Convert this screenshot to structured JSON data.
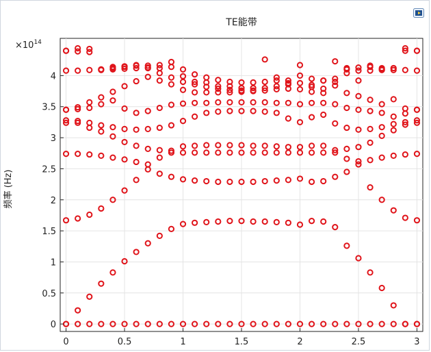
{
  "chart_data": {
    "type": "scatter",
    "title": "TE能带",
    "xlabel": "",
    "ylabel": "频率 (Hz)",
    "y_exponent_label": "×10",
    "y_exponent_power": "14",
    "xlim": [
      -0.05,
      3.05
    ],
    "ylim": [
      -0.12,
      4.6
    ],
    "x_ticks": [
      0,
      0.5,
      1,
      1.5,
      2,
      2.5,
      3
    ],
    "y_ticks": [
      0,
      0.5,
      1,
      1.5,
      2,
      2.5,
      3,
      3.5,
      4
    ],
    "x_tick_labels": [
      "0",
      "0.5",
      "1",
      "1.5",
      "2",
      "2.5",
      "3"
    ],
    "y_tick_labels": [
      "0",
      "0.5",
      "1",
      "1.5",
      "2",
      "2.5",
      "3",
      "3.5",
      "4"
    ],
    "grid": true,
    "marker": "hollow-circle",
    "marker_color": "#e0141a",
    "x": [
      0,
      0.1,
      0.2,
      0.3,
      0.4,
      0.5,
      0.6,
      0.7,
      0.8,
      0.9,
      1.0,
      1.1,
      1.2,
      1.3,
      1.4,
      1.5,
      1.6,
      1.7,
      1.8,
      1.9,
      2.0,
      2.1,
      2.2,
      2.3,
      2.4,
      2.5,
      2.6,
      2.7,
      2.8,
      2.9,
      3.0
    ],
    "series": [
      {
        "values": [
          0,
          0,
          0,
          0,
          0,
          0,
          0,
          0,
          0,
          0,
          0,
          0,
          0,
          0,
          0,
          0,
          0,
          0,
          0,
          0,
          0,
          0,
          0,
          0,
          0,
          0,
          0,
          0,
          0,
          0,
          0
        ]
      },
      {
        "values": [
          0,
          0.22,
          0.44,
          0.65,
          0.83,
          1.01,
          1.16,
          1.3,
          1.42,
          1.53,
          1.61,
          1.63,
          1.64,
          1.65,
          1.66,
          1.66,
          1.65,
          1.65,
          1.64,
          1.63,
          1.6,
          1.66,
          1.65,
          1.56,
          1.26,
          1.06,
          0.83,
          0.58,
          0.3,
          0.0,
          0.0
        ]
      },
      {
        "values": [
          1.67,
          1.7,
          1.76,
          1.86,
          2.0,
          2.15,
          2.32,
          2.49,
          2.42,
          2.37,
          2.33,
          2.31,
          2.3,
          2.29,
          2.29,
          2.29,
          2.29,
          2.3,
          2.31,
          2.32,
          2.34,
          2.29,
          2.3,
          2.37,
          2.45,
          2.62,
          2.2,
          2.0,
          1.83,
          1.71,
          1.67
        ]
      },
      {
        "values": [
          2.74,
          2.74,
          2.73,
          2.71,
          2.68,
          2.65,
          2.61,
          2.57,
          2.68,
          2.79,
          2.76,
          2.76,
          2.76,
          2.76,
          2.76,
          2.76,
          2.76,
          2.76,
          2.76,
          2.76,
          2.76,
          2.76,
          2.76,
          2.76,
          2.66,
          2.57,
          2.64,
          2.68,
          2.71,
          2.73,
          2.74
        ]
      },
      {
        "values": [
          3.24,
          3.24,
          3.16,
          3.1,
          3.02,
          2.93,
          2.87,
          2.82,
          2.8,
          2.76,
          2.86,
          2.87,
          2.88,
          2.88,
          2.88,
          2.88,
          2.87,
          2.87,
          2.86,
          2.85,
          2.85,
          2.87,
          2.87,
          2.8,
          2.82,
          2.85,
          2.92,
          3.03,
          3.12,
          3.21,
          3.24
        ]
      },
      {
        "values": [
          3.28,
          3.27,
          3.24,
          3.2,
          3.17,
          3.14,
          3.13,
          3.14,
          3.16,
          3.2,
          3.27,
          3.34,
          3.4,
          3.42,
          3.43,
          3.43,
          3.43,
          3.42,
          3.4,
          3.31,
          3.25,
          3.33,
          3.37,
          3.23,
          3.16,
          3.13,
          3.14,
          3.17,
          3.22,
          3.25,
          3.28
        ]
      },
      {
        "values": [
          3.45,
          3.46,
          3.48,
          3.54,
          3.6,
          3.47,
          3.4,
          3.43,
          3.48,
          3.53,
          3.55,
          3.56,
          3.56,
          3.57,
          3.57,
          3.57,
          3.57,
          3.57,
          3.56,
          3.56,
          3.54,
          3.56,
          3.56,
          3.54,
          3.48,
          3.45,
          3.43,
          3.4,
          3.34,
          3.39,
          3.45
        ]
      },
      {
        "values": [
          3.45,
          3.49,
          3.57,
          3.65,
          3.74,
          3.83,
          3.91,
          3.98,
          4.04,
          3.86,
          3.77,
          3.73,
          3.73,
          3.73,
          3.73,
          3.74,
          3.75,
          3.76,
          3.78,
          3.79,
          3.78,
          3.74,
          3.72,
          3.84,
          3.72,
          3.67,
          3.61,
          3.54,
          3.62,
          3.47,
          3.45
        ]
      },
      {
        "values": [
          4.08,
          4.08,
          4.09,
          4.09,
          4.1,
          4.11,
          4.12,
          4.12,
          4.12,
          4.14,
          4.1,
          4.02,
          3.97,
          3.93,
          3.9,
          3.89,
          3.89,
          3.9,
          3.92,
          3.92,
          4.0,
          3.95,
          3.92,
          3.9,
          4.04,
          4.08,
          4.08,
          4.09,
          4.09,
          4.09,
          4.08
        ]
      },
      {
        "values": [
          4.4,
          4.44,
          4.43,
          4.1,
          4.14,
          4.15,
          4.17,
          4.16,
          4.17,
          4.22,
          3.99,
          3.9,
          3.89,
          3.83,
          3.83,
          3.8,
          3.8,
          4.26,
          3.97,
          3.88,
          4.17,
          3.85,
          3.92,
          4.23,
          4.12,
          4.13,
          4.14,
          4.12,
          4.12,
          4.44,
          4.4
        ]
      },
      {
        "values": [
          4.4,
          4.39,
          4.38,
          4.1,
          4.12,
          4.14,
          4.16,
          4.13,
          3.92,
          3.97,
          3.9,
          3.86,
          3.82,
          3.79,
          3.77,
          3.76,
          3.76,
          3.8,
          3.83,
          3.86,
          3.88,
          3.82,
          3.79,
          3.95,
          4.1,
          3.92,
          4.16,
          4.1,
          4.12,
          4.4,
          4.4
        ]
      }
    ]
  }
}
